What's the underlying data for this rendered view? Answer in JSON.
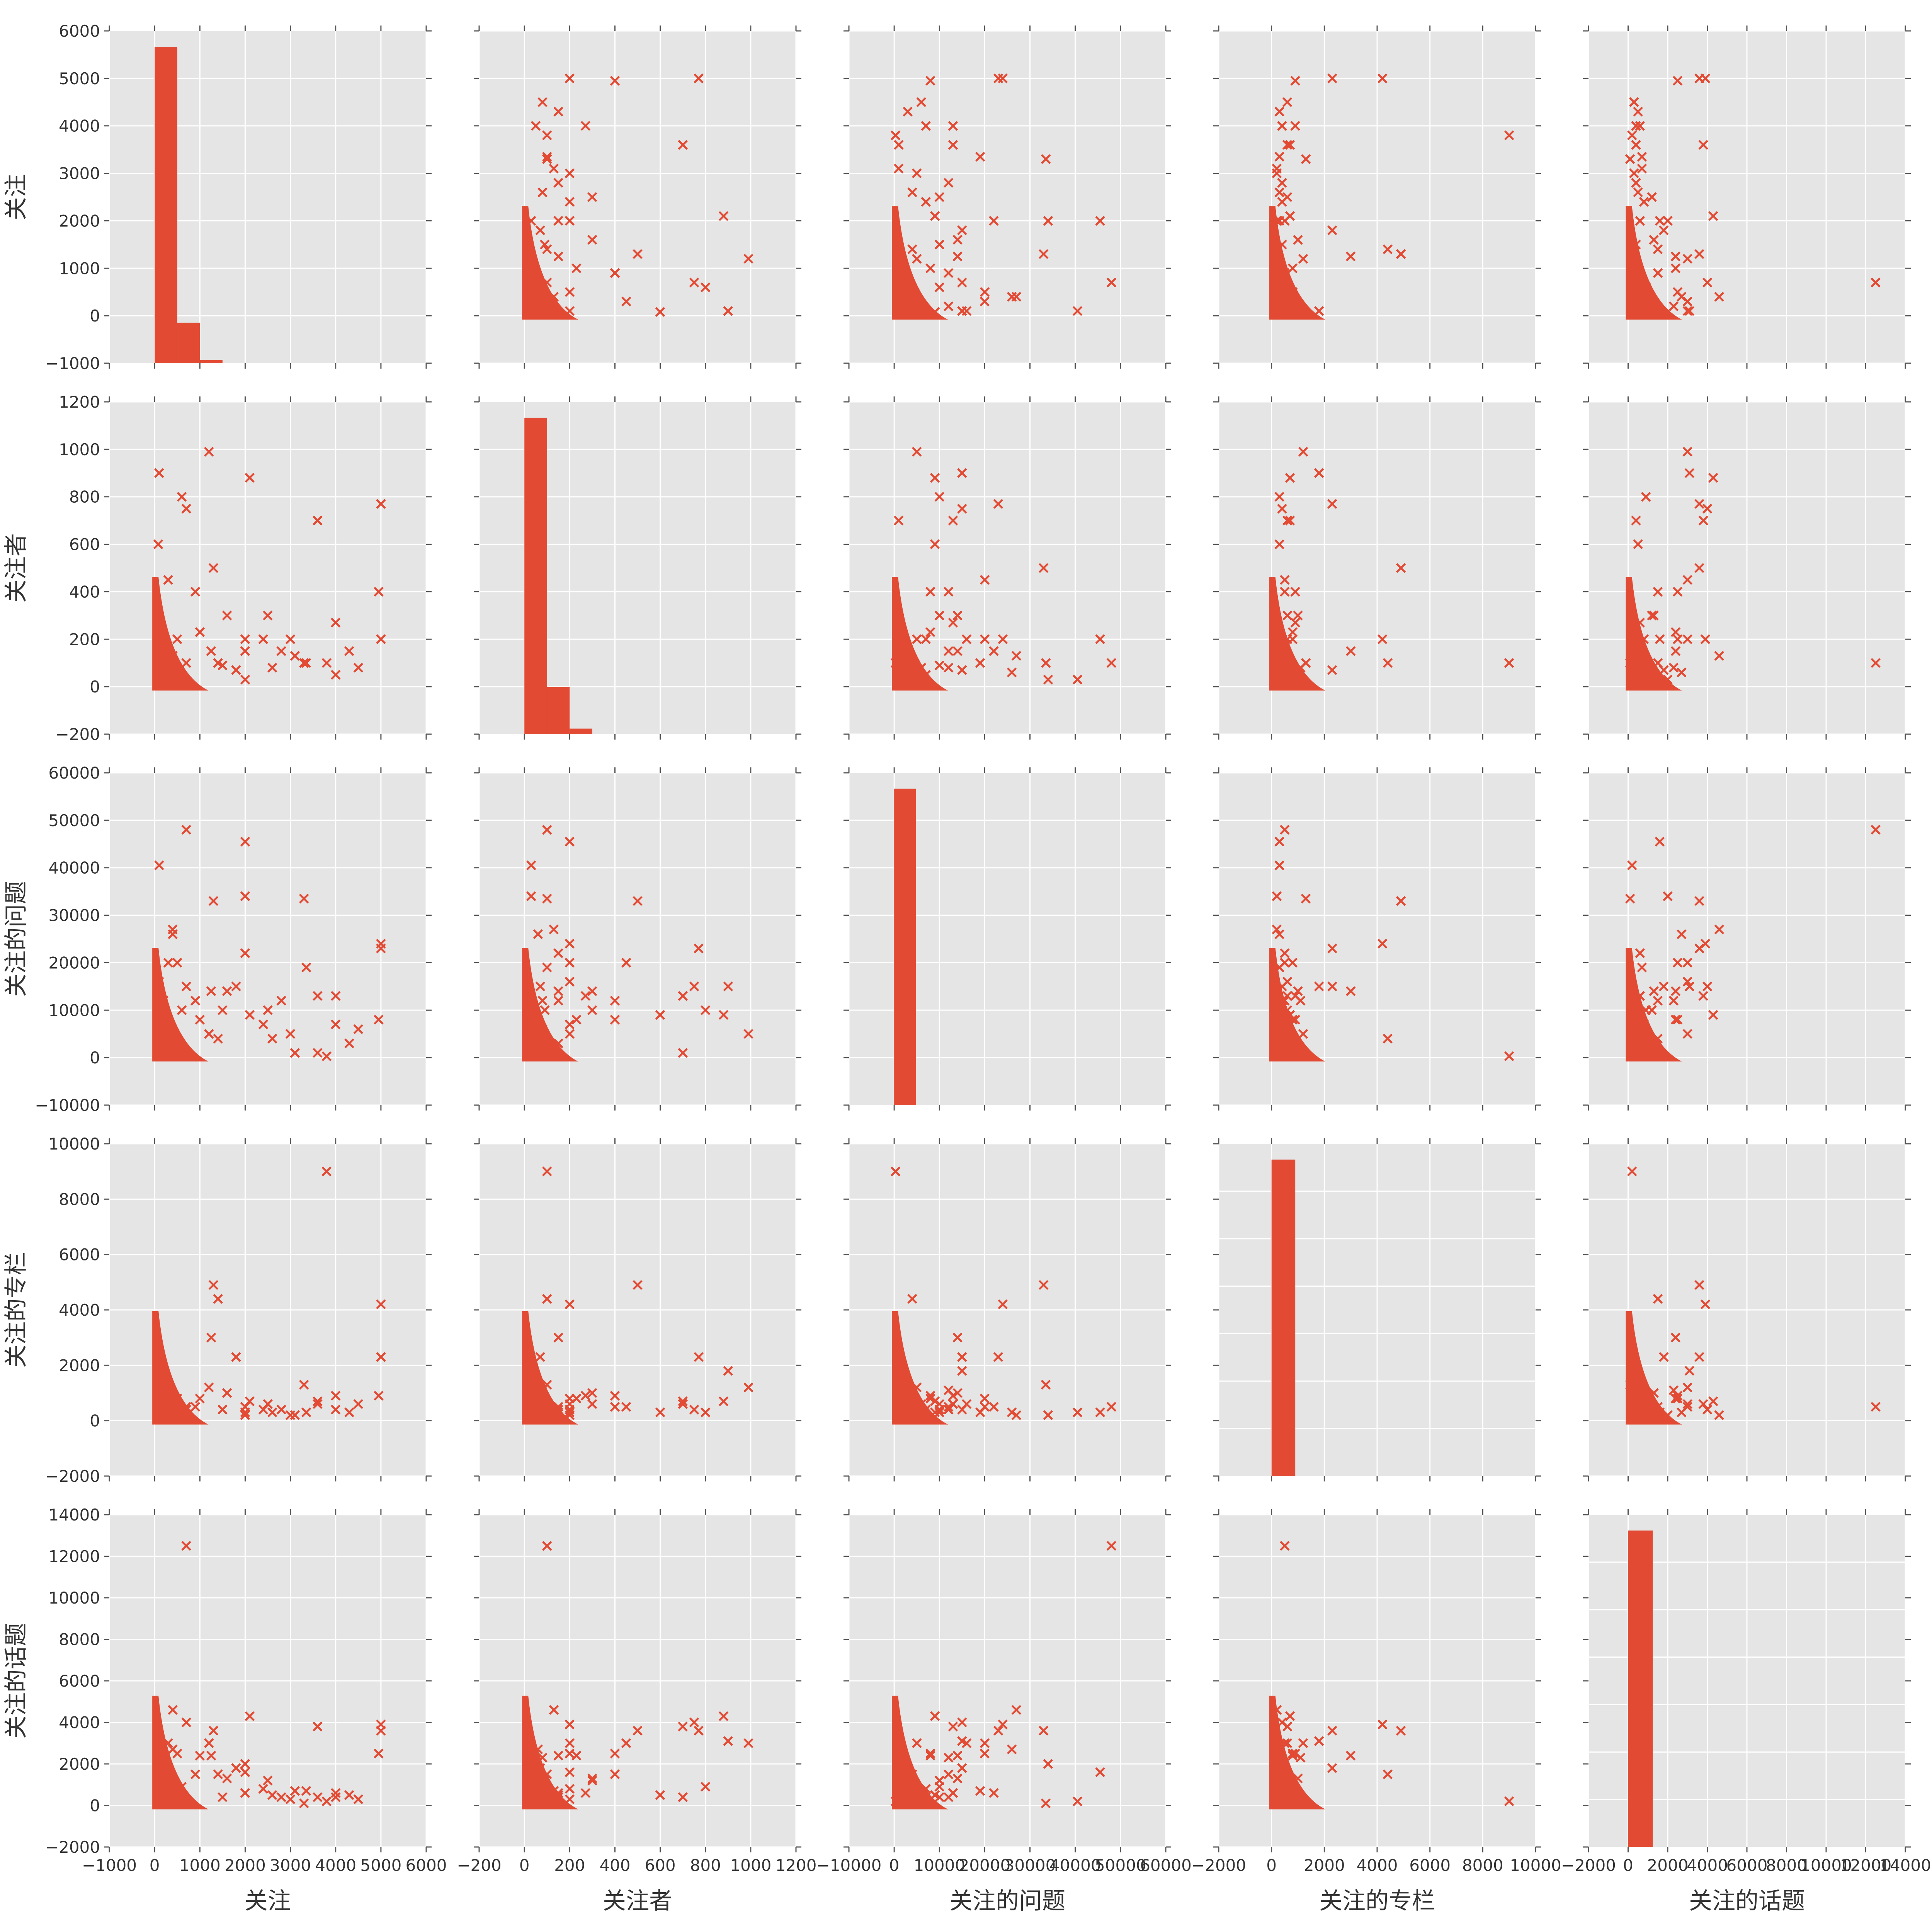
{
  "chart_data": {
    "type": "scatter",
    "kind": "pairplot",
    "variables": [
      "关注",
      "关注者",
      "关注的问题",
      "关注的专栏",
      "关注的话题"
    ],
    "color": "#e24a33",
    "background": "#e5e5e5",
    "grid": true,
    "marker": "x",
    "axes": [
      {
        "label": "关注",
        "range": [
          -1000,
          6000
        ],
        "ticks": [
          -1000,
          0,
          1000,
          2000,
          3000,
          4000,
          5000,
          6000
        ],
        "tick_labels": [
          "−1000",
          "0",
          "1000",
          "2000",
          "3000",
          "4000",
          "5000",
          "6000"
        ]
      },
      {
        "label": "关注者",
        "range": [
          -200,
          1200
        ],
        "ticks": [
          -200,
          0,
          200,
          400,
          600,
          800,
          1000,
          1200
        ],
        "tick_labels": [
          "−200",
          "0",
          "200",
          "400",
          "600",
          "800",
          "1000",
          "1200"
        ]
      },
      {
        "label": "关注的问题",
        "range": [
          -10000,
          60000
        ],
        "ticks": [
          -10000,
          0,
          10000,
          20000,
          30000,
          40000,
          50000,
          60000
        ],
        "tick_labels": [
          "−10000",
          "0",
          "10000",
          "20000",
          "30000",
          "40000",
          "50000",
          "60000"
        ]
      },
      {
        "label": "关注的专栏",
        "range": [
          -2000,
          10000
        ],
        "ticks": [
          -2000,
          0,
          2000,
          4000,
          6000,
          8000,
          10000
        ],
        "tick_labels": [
          "−2000",
          "0",
          "2000",
          "4000",
          "6000",
          "8000",
          "10000"
        ]
      },
      {
        "label": "关注的话题",
        "range": [
          -2000,
          14000
        ],
        "ticks": [
          -2000,
          0,
          2000,
          4000,
          6000,
          8000,
          10000,
          12000,
          14000
        ],
        "tick_labels": [
          "−2000",
          "0",
          "2000",
          "4000",
          "6000",
          "8000",
          "10000",
          "12000",
          "14000"
        ]
      }
    ],
    "histograms": [
      {
        "variable": "关注",
        "bins": [
          [
            0,
            500,
            5700
          ],
          [
            500,
            1000,
            730
          ],
          [
            1000,
            1500,
            60
          ]
        ],
        "bar_range": [
          -1000,
          6000
        ]
      },
      {
        "variable": "关注者",
        "bins": [
          [
            0,
            100,
            1140
          ],
          [
            100,
            200,
            170
          ],
          [
            200,
            300,
            20
          ]
        ],
        "bar_range": [
          -200,
          1200
        ]
      },
      {
        "variable": "关注的问题",
        "bins": [
          [
            0,
            4800,
            52000
          ]
        ],
        "bar_range": [
          -10000,
          60000
        ]
      },
      {
        "variable": "关注的专栏",
        "bins": [
          [
            0,
            900,
            8700
          ]
        ],
        "bar_range": [
          -2000,
          10000
        ]
      },
      {
        "variable": "关注的话题",
        "bins": [
          [
            0,
            1250,
            12200
          ]
        ],
        "bar_range": [
          -2000,
          14000
        ]
      }
    ],
    "points": [
      [
        5000,
        200,
        24000,
        4200,
        3900
      ],
      [
        5000,
        770,
        23000,
        2300,
        3600
      ],
      [
        4950,
        400,
        8000,
        900,
        2500
      ],
      [
        4000,
        270,
        13000,
        900,
        600
      ],
      [
        4000,
        50,
        7000,
        400,
        400
      ],
      [
        3800,
        100,
        300,
        9000,
        200
      ],
      [
        3600,
        700,
        13000,
        600,
        3800
      ],
      [
        3600,
        700,
        1000,
        700,
        400
      ],
      [
        3350,
        100,
        19000,
        300,
        700
      ],
      [
        3300,
        100,
        33500,
        1300,
        100
      ],
      [
        2800,
        150,
        12000,
        400,
        400
      ],
      [
        2500,
        300,
        10000,
        600,
        1200
      ],
      [
        2400,
        200,
        7000,
        400,
        800
      ],
      [
        2100,
        880,
        9000,
        700,
        4300
      ],
      [
        2000,
        30,
        34000,
        200,
        2000
      ],
      [
        2000,
        200,
        45500,
        300,
        1600
      ],
      [
        2000,
        150,
        22000,
        500,
        600
      ],
      [
        1800,
        70,
        15000,
        2300,
        1800
      ],
      [
        1600,
        300,
        14000,
        1000,
        1300
      ],
      [
        1500,
        90,
        10000,
        400,
        400
      ],
      [
        1400,
        100,
        4000,
        4400,
        1500
      ],
      [
        1300,
        500,
        33000,
        4900,
        3600
      ],
      [
        1250,
        150,
        14000,
        3000,
        2400
      ],
      [
        1200,
        990,
        5000,
        1200,
        3000
      ],
      [
        1000,
        230,
        8000,
        800,
        2400
      ],
      [
        900,
        400,
        12000,
        500,
        1500
      ],
      [
        700,
        100,
        48000,
        500,
        12500
      ],
      [
        700,
        750,
        15000,
        400,
        4000
      ],
      [
        600,
        800,
        10000,
        300,
        900
      ],
      [
        500,
        200,
        20000,
        800,
        2500
      ],
      [
        400,
        130,
        27000,
        200,
        4600
      ],
      [
        400,
        60,
        26000,
        300,
        2700
      ],
      [
        300,
        450,
        20000,
        500,
        3000
      ],
      [
        200,
        80,
        12000,
        1100,
        2300
      ],
      [
        100,
        30,
        40500,
        300,
        200
      ],
      [
        100,
        900,
        15000,
        1800,
        3100
      ],
      [
        100,
        200,
        16000,
        600,
        3000
      ],
      [
        80,
        600,
        9000,
        300,
        500
      ],
      [
        3000,
        200,
        5000,
        200,
        300
      ],
      [
        2600,
        80,
        4000,
        300,
        500
      ],
      [
        4500,
        80,
        6000,
        600,
        300
      ],
      [
        4300,
        150,
        3000,
        300,
        500
      ],
      [
        3100,
        130,
        1000,
        200,
        700
      ]
    ]
  }
}
